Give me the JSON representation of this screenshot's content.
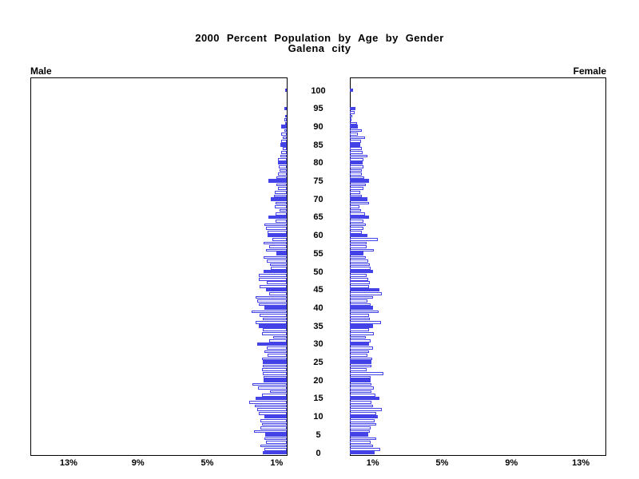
{
  "panels": {
    "left_label": "Male",
    "right_label": "Female"
  },
  "chart_data": {
    "type": "bar",
    "variant": "population-pyramid",
    "title": "2000 Percent Population by Age by Gender",
    "subtitle": "Galena city",
    "legend": "none",
    "grid": false,
    "age_axis": {
      "min": 0,
      "max": 100,
      "bin_years": 1,
      "label_interval": 5,
      "tick_labels": [
        "0",
        "5",
        "10",
        "15",
        "20",
        "25",
        "30",
        "35",
        "40",
        "45",
        "50",
        "55",
        "60",
        "65",
        "70",
        "75",
        "80",
        "85",
        "90",
        "95",
        "100"
      ]
    },
    "value_axis": {
      "unit": "percent",
      "max_percent": 14.8,
      "ticks_percent": [
        1,
        5,
        9,
        13
      ],
      "male_tick_labels": [
        "13%",
        "9%",
        "5%",
        "1%"
      ],
      "female_tick_labels": [
        "1%",
        "5%",
        "9%",
        "13%"
      ]
    },
    "highlight_rule": "bars at ages that are multiples of 5 are solid blue; other ages are white with blue outline",
    "colors": {
      "bar_outline": "#4343e8",
      "bar_fill_default": "#ffffff",
      "bar_fill_multiple_of_5": "#4343e8",
      "frame": "#000000",
      "text": "#000000",
      "background": "#ffffff"
    },
    "series": [
      {
        "name": "Male",
        "side": "left",
        "ages": "0-100 ascending, percent of total population",
        "values": [
          1.4,
          1.3,
          1.5,
          1.2,
          1.3,
          1.25,
          1.9,
          1.5,
          1.45,
          1.5,
          1.3,
          1.6,
          1.7,
          1.85,
          2.15,
          1.8,
          1.45,
          0.95,
          1.65,
          2.0,
          1.35,
          1.35,
          1.4,
          1.45,
          1.4,
          1.4,
          1.45,
          1.1,
          1.3,
          1.15,
          1.7,
          1.0,
          0.8,
          1.45,
          1.4,
          1.6,
          1.8,
          1.4,
          1.55,
          2.05,
          1.3,
          1.6,
          1.7,
          1.8,
          1.0,
          1.2,
          1.55,
          1.15,
          1.6,
          1.6,
          1.35,
          0.9,
          0.95,
          1.15,
          1.35,
          0.6,
          1.2,
          1.0,
          1.35,
          0.85,
          1.1,
          1.1,
          1.2,
          1.3,
          0.65,
          1.05,
          0.65,
          0.4,
          0.7,
          0.65,
          0.9,
          0.75,
          0.7,
          0.5,
          0.6,
          1.05,
          0.6,
          0.5,
          0.4,
          0.45,
          0.5,
          0.5,
          0.35,
          0.3,
          0.25,
          0.35,
          0.3,
          0.25,
          0.3,
          0.15,
          0.3,
          0.1,
          0.15,
          0.08,
          0.0,
          0.12,
          0.0,
          0.0,
          0.0,
          0.0,
          0.05
        ]
      },
      {
        "name": "Female",
        "side": "right",
        "ages": "0-100 ascending, percent of total population",
        "values": [
          1.45,
          1.75,
          1.35,
          1.2,
          1.5,
          1.05,
          1.15,
          1.2,
          1.5,
          1.45,
          1.6,
          1.5,
          1.85,
          1.35,
          1.25,
          1.7,
          1.48,
          1.25,
          1.4,
          1.25,
          1.2,
          1.2,
          1.95,
          0.97,
          1.25,
          1.25,
          1.3,
          1.0,
          1.1,
          1.32,
          1.1,
          1.2,
          0.9,
          1.4,
          1.12,
          1.32,
          1.78,
          1.17,
          1.09,
          1.67,
          1.32,
          1.21,
          1.01,
          1.32,
          1.85,
          1.71,
          1.09,
          1.17,
          1.06,
          0.97,
          1.32,
          1.21,
          1.17,
          1.06,
          0.94,
          0.8,
          1.4,
          0.95,
          0.95,
          1.6,
          1.0,
          0.71,
          0.78,
          0.94,
          0.78,
          1.12,
          0.86,
          0.63,
          0.55,
          1.09,
          1.01,
          0.71,
          0.6,
          0.78,
          0.9,
          1.09,
          0.81,
          0.71,
          0.71,
          0.78,
          0.75,
          0.78,
          1.02,
          0.75,
          0.71,
          0.62,
          0.63,
          0.86,
          0.48,
          0.7,
          0.45,
          0.4,
          0.1,
          0.15,
          0.29,
          0.32,
          0.0,
          0.0,
          0.0,
          0.0,
          0.18
        ]
      }
    ]
  }
}
